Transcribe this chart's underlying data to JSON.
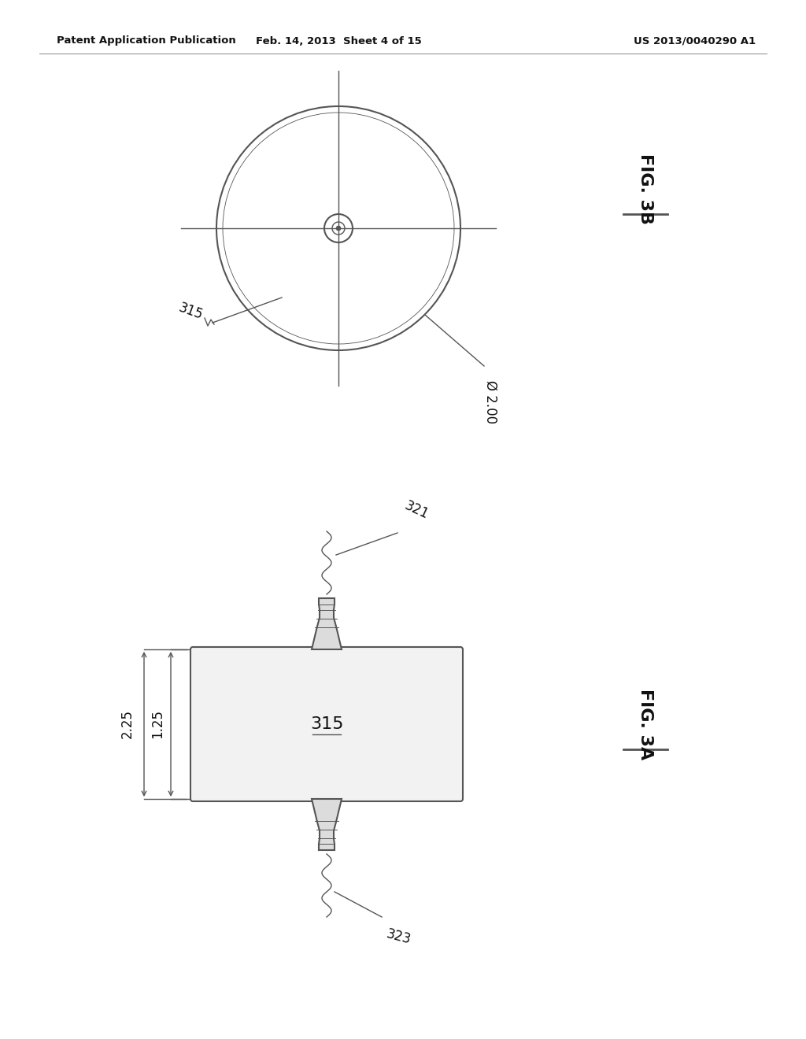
{
  "background_color": "#ffffff",
  "header_left": "Patent Application Publication",
  "header_center": "Feb. 14, 2013  Sheet 4 of 15",
  "header_right": "US 2013/0040290 A1",
  "fig3b_label": "FIG. 3B",
  "fig3a_label": "FIG. 3A",
  "line_color": "#555555",
  "text_color": "#111111",
  "fig3b_dim_label": "Ø 2.00",
  "fig3a_dim_225": "2.25",
  "fig3a_dim_125": "1.25",
  "label_315_top": "315",
  "label_315_bot": "315",
  "label_321": "321",
  "label_323": "323"
}
